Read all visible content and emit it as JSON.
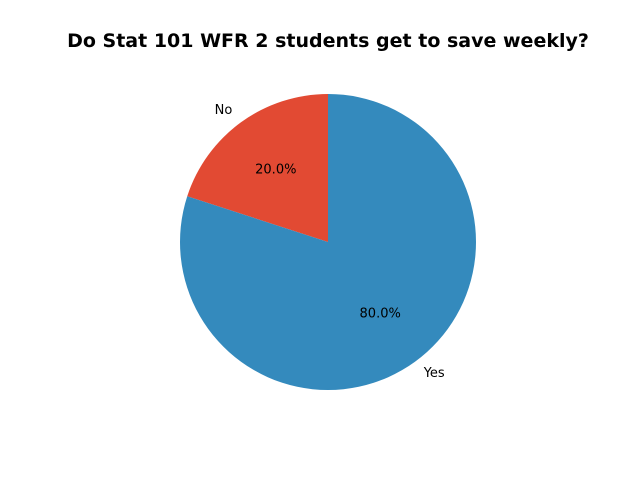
{
  "chart_data": {
    "type": "pie",
    "title": "Do Stat 101 WFR 2 students get to save weekly?",
    "categories": [
      "No",
      "Yes"
    ],
    "values": [
      20.0,
      80.0
    ],
    "percent_labels": [
      "20.0%",
      "80.0%"
    ],
    "colors": [
      "#e24a33",
      "#348abd"
    ],
    "start_angle_deg": 90,
    "direction": "counterclockwise",
    "legend": "none"
  }
}
